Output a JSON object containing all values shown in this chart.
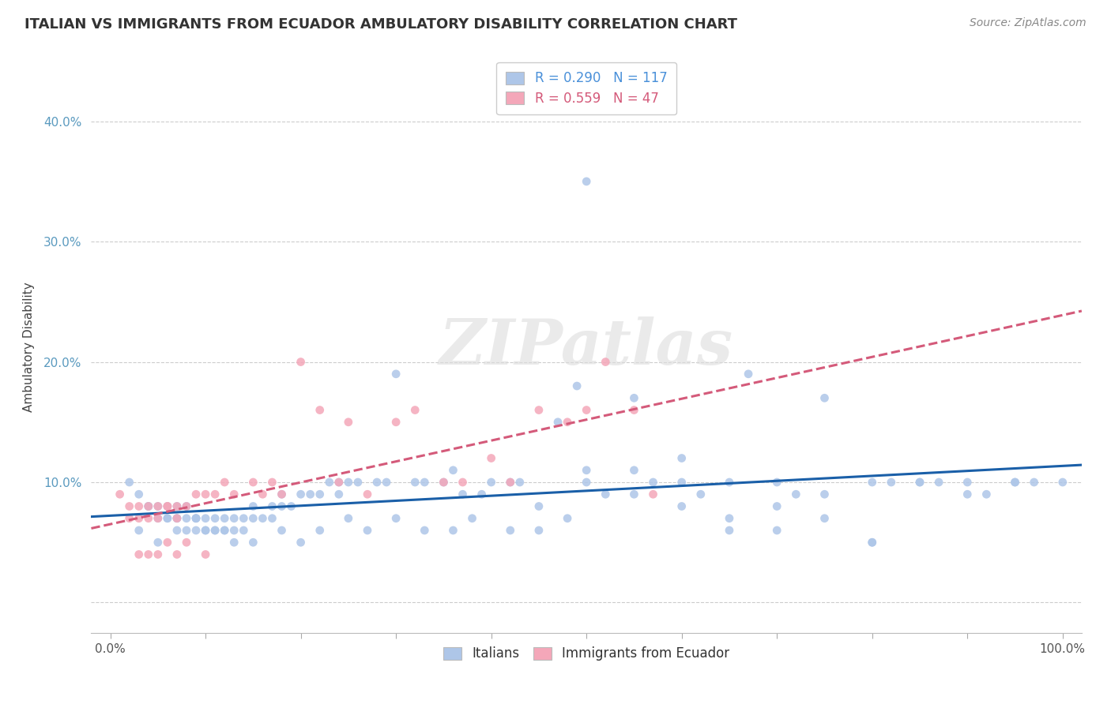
{
  "title": "ITALIAN VS IMMIGRANTS FROM ECUADOR AMBULATORY DISABILITY CORRELATION CHART",
  "source": "Source: ZipAtlas.com",
  "ylabel": "Ambulatory Disability",
  "background_color": "#ffffff",
  "grid_color": "#cccccc",
  "italian_color": "#aec6e8",
  "ecuador_color": "#f4a7b9",
  "italian_line_color": "#1a5fa8",
  "ecuador_line_color": "#d45a7a",
  "watermark": "ZIPatlas",
  "italian_scatter_x": [
    0.02,
    0.03,
    0.04,
    0.04,
    0.05,
    0.05,
    0.06,
    0.06,
    0.06,
    0.07,
    0.07,
    0.07,
    0.08,
    0.08,
    0.08,
    0.09,
    0.09,
    0.09,
    0.1,
    0.1,
    0.1,
    0.11,
    0.11,
    0.12,
    0.12,
    0.12,
    0.13,
    0.13,
    0.14,
    0.14,
    0.15,
    0.15,
    0.16,
    0.17,
    0.17,
    0.18,
    0.18,
    0.19,
    0.2,
    0.21,
    0.22,
    0.23,
    0.24,
    0.24,
    0.25,
    0.26,
    0.28,
    0.29,
    0.3,
    0.32,
    0.33,
    0.35,
    0.36,
    0.37,
    0.39,
    0.4,
    0.42,
    0.43,
    0.45,
    0.47,
    0.49,
    0.5,
    0.52,
    0.55,
    0.57,
    0.6,
    0.62,
    0.65,
    0.67,
    0.7,
    0.72,
    0.75,
    0.8,
    0.82,
    0.85,
    0.87,
    0.9,
    0.92,
    0.95,
    0.97,
    1.0,
    0.03,
    0.05,
    0.07,
    0.09,
    0.11,
    0.13,
    0.15,
    0.18,
    0.2,
    0.22,
    0.25,
    0.27,
    0.3,
    0.33,
    0.36,
    0.38,
    0.42,
    0.45,
    0.48,
    0.5,
    0.55,
    0.6,
    0.65,
    0.7,
    0.75,
    0.8,
    0.85,
    0.9,
    0.95,
    0.5,
    0.55,
    0.6,
    0.65,
    0.7,
    0.75,
    0.8
  ],
  "italian_scatter_y": [
    0.1,
    0.09,
    0.08,
    0.08,
    0.08,
    0.07,
    0.08,
    0.07,
    0.07,
    0.08,
    0.07,
    0.07,
    0.08,
    0.07,
    0.06,
    0.07,
    0.07,
    0.06,
    0.07,
    0.06,
    0.06,
    0.07,
    0.06,
    0.07,
    0.06,
    0.06,
    0.07,
    0.06,
    0.07,
    0.06,
    0.08,
    0.07,
    0.07,
    0.08,
    0.07,
    0.09,
    0.08,
    0.08,
    0.09,
    0.09,
    0.09,
    0.1,
    0.1,
    0.09,
    0.1,
    0.1,
    0.1,
    0.1,
    0.19,
    0.1,
    0.1,
    0.1,
    0.11,
    0.09,
    0.09,
    0.1,
    0.1,
    0.1,
    0.08,
    0.15,
    0.18,
    0.11,
    0.09,
    0.09,
    0.1,
    0.1,
    0.09,
    0.1,
    0.19,
    0.1,
    0.09,
    0.09,
    0.1,
    0.1,
    0.1,
    0.1,
    0.1,
    0.09,
    0.1,
    0.1,
    0.1,
    0.06,
    0.05,
    0.06,
    0.07,
    0.06,
    0.05,
    0.05,
    0.06,
    0.05,
    0.06,
    0.07,
    0.06,
    0.07,
    0.06,
    0.06,
    0.07,
    0.06,
    0.06,
    0.07,
    0.35,
    0.17,
    0.08,
    0.06,
    0.06,
    0.07,
    0.05,
    0.1,
    0.09,
    0.1,
    0.1,
    0.11,
    0.12,
    0.07,
    0.08,
    0.17,
    0.05
  ],
  "ecuador_scatter_x": [
    0.01,
    0.02,
    0.02,
    0.03,
    0.03,
    0.04,
    0.04,
    0.05,
    0.05,
    0.06,
    0.06,
    0.07,
    0.07,
    0.08,
    0.09,
    0.1,
    0.11,
    0.12,
    0.13,
    0.15,
    0.16,
    0.17,
    0.18,
    0.2,
    0.22,
    0.24,
    0.25,
    0.27,
    0.3,
    0.32,
    0.35,
    0.37,
    0.4,
    0.42,
    0.45,
    0.48,
    0.5,
    0.52,
    0.55,
    0.57,
    0.03,
    0.04,
    0.05,
    0.06,
    0.07,
    0.08,
    0.1
  ],
  "ecuador_scatter_y": [
    0.09,
    0.07,
    0.08,
    0.08,
    0.07,
    0.08,
    0.07,
    0.08,
    0.07,
    0.08,
    0.08,
    0.07,
    0.08,
    0.08,
    0.09,
    0.09,
    0.09,
    0.1,
    0.09,
    0.1,
    0.09,
    0.1,
    0.09,
    0.2,
    0.16,
    0.1,
    0.15,
    0.09,
    0.15,
    0.16,
    0.1,
    0.1,
    0.12,
    0.1,
    0.16,
    0.15,
    0.16,
    0.2,
    0.16,
    0.09,
    0.04,
    0.04,
    0.04,
    0.05,
    0.04,
    0.05,
    0.04
  ]
}
